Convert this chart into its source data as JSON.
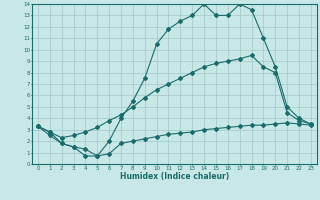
{
  "title": "",
  "xlabel": "Humidex (Indice chaleur)",
  "ylabel": "",
  "xlim": [
    -0.5,
    23.5
  ],
  "ylim": [
    0,
    14
  ],
  "xticks": [
    0,
    1,
    2,
    3,
    4,
    5,
    6,
    7,
    8,
    9,
    10,
    11,
    12,
    13,
    14,
    15,
    16,
    17,
    18,
    19,
    20,
    21,
    22,
    23
  ],
  "yticks": [
    0,
    1,
    2,
    3,
    4,
    5,
    6,
    7,
    8,
    9,
    10,
    11,
    12,
    13,
    14
  ],
  "bg_color": "#c8e8e8",
  "line_color": "#1a6b6b",
  "grid_color": "#a0c8c8",
  "line1_x": [
    0,
    1,
    2,
    3,
    4,
    5,
    6,
    7,
    8,
    9,
    10,
    11,
    12,
    13,
    14,
    15,
    16,
    17,
    18,
    19,
    20,
    21,
    22,
    23
  ],
  "line1_y": [
    3.3,
    2.5,
    1.8,
    1.5,
    0.7,
    0.7,
    2.0,
    4.0,
    5.5,
    7.5,
    10.5,
    11.8,
    12.5,
    13.0,
    14.0,
    13.0,
    13.0,
    14.0,
    13.5,
    11.0,
    8.5,
    5.0,
    4.0,
    3.5
  ],
  "line2_x": [
    0,
    1,
    2,
    3,
    4,
    5,
    6,
    7,
    8,
    9,
    10,
    11,
    12,
    13,
    14,
    15,
    16,
    17,
    18,
    19,
    20,
    21,
    22,
    23
  ],
  "line2_y": [
    3.3,
    2.8,
    2.3,
    2.5,
    2.8,
    3.2,
    3.8,
    4.3,
    5.0,
    5.8,
    6.5,
    7.0,
    7.5,
    8.0,
    8.5,
    8.8,
    9.0,
    9.2,
    9.5,
    8.5,
    8.0,
    4.5,
    3.8,
    3.5
  ],
  "line3_x": [
    0,
    1,
    2,
    3,
    4,
    5,
    6,
    7,
    8,
    9,
    10,
    11,
    12,
    13,
    14,
    15,
    16,
    17,
    18,
    19,
    20,
    21,
    22,
    23
  ],
  "line3_y": [
    3.3,
    2.8,
    1.8,
    1.5,
    1.3,
    0.7,
    0.9,
    1.8,
    2.0,
    2.2,
    2.4,
    2.6,
    2.7,
    2.8,
    3.0,
    3.1,
    3.2,
    3.3,
    3.4,
    3.4,
    3.5,
    3.6,
    3.5,
    3.4
  ]
}
